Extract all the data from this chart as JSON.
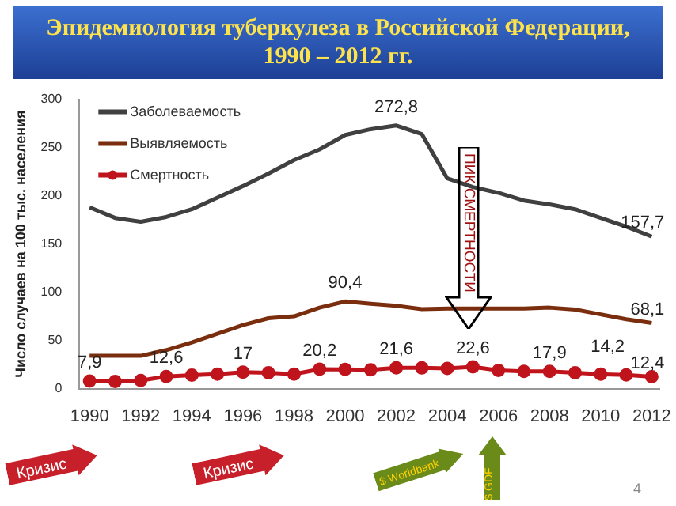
{
  "chart_data": {
    "type": "line",
    "title": "Эпидемиология туберкулеза в Российской Федерации, 1990 – 2012 гг.",
    "ylabel": "Число случаев на 100 тыс. населения",
    "x": [
      1990,
      1991,
      1992,
      1993,
      1994,
      1995,
      1996,
      1997,
      1998,
      1999,
      2000,
      2001,
      2002,
      2003,
      2004,
      2005,
      2006,
      2007,
      2008,
      2009,
      2010,
      2011,
      2012
    ],
    "xlim": [
      1989.6,
      2012.3
    ],
    "xticks": [
      1990,
      1992,
      1994,
      1996,
      1998,
      2000,
      2002,
      2004,
      2006,
      2008,
      2010,
      2012
    ],
    "ylim": [
      0,
      300
    ],
    "yticks": [
      0,
      50,
      100,
      150,
      200,
      250,
      300
    ],
    "grid": false,
    "legend": "top left",
    "series": [
      {
        "name": "Заболеваемость",
        "color": "#404040",
        "marker": "none",
        "values": [
          188,
          177,
          173,
          178,
          186,
          198,
          210,
          223,
          237,
          248,
          263,
          269,
          272.8,
          264,
          218,
          209,
          203,
          195,
          191,
          186,
          177,
          168,
          157.7
        ],
        "value_labels": [
          null,
          null,
          null,
          null,
          null,
          null,
          null,
          null,
          null,
          null,
          null,
          null,
          "272,8",
          null,
          null,
          null,
          null,
          null,
          null,
          null,
          null,
          null,
          "157,7"
        ]
      },
      {
        "name": "Выявляемость",
        "color": "#7a2e0e",
        "marker": "none",
        "values": [
          34,
          34,
          34,
          40,
          48,
          57,
          66,
          73,
          75,
          84,
          90.4,
          88,
          86,
          82.5,
          83,
          83,
          83,
          83,
          84,
          82,
          77,
          72,
          68.1
        ],
        "value_labels": [
          null,
          null,
          null,
          null,
          null,
          null,
          null,
          null,
          null,
          null,
          "90,4",
          null,
          null,
          null,
          null,
          null,
          null,
          null,
          null,
          null,
          null,
          null,
          "68,1"
        ]
      },
      {
        "name": "Смертность",
        "color": "#c0141c",
        "marker": "circle",
        "values": [
          7.9,
          7.5,
          8.5,
          12.6,
          14,
          15,
          17,
          16.5,
          15,
          20.2,
          20,
          19.5,
          21.6,
          21.5,
          21,
          22.6,
          19,
          18,
          17.9,
          16.5,
          15,
          14.2,
          12.4
        ],
        "value_labels": [
          "7,9",
          null,
          null,
          "12,6",
          null,
          null,
          "17",
          null,
          null,
          "20,2",
          null,
          null,
          "21,6",
          null,
          null,
          "22,6",
          null,
          null,
          "17,9",
          null,
          null,
          "14,2",
          "12,4"
        ]
      }
    ],
    "annotations": [
      "Кризис",
      "Кризис",
      "ПИК СМЕРТНОСТИ",
      "$ Worldbank",
      "$ GDF",
      "4"
    ]
  }
}
